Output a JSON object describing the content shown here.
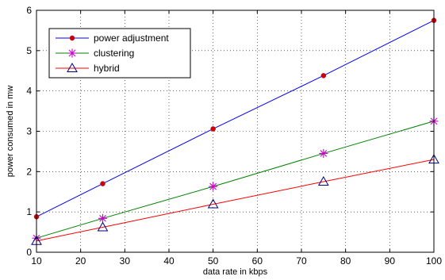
{
  "chart_data": {
    "type": "line",
    "title": "",
    "xlabel": "data rate in kbps",
    "ylabel": "power consumed in mw",
    "xlim": [
      10,
      100
    ],
    "ylim": [
      0,
      6
    ],
    "xticks": [
      10,
      20,
      30,
      40,
      50,
      60,
      70,
      80,
      90,
      100
    ],
    "yticks": [
      0,
      1,
      2,
      3,
      4,
      5,
      6
    ],
    "grid": true,
    "legend_position": "top-left",
    "series": [
      {
        "name": "power adjustment",
        "color": "#0000ff",
        "marker_color": "#cc0000",
        "marker": "dot",
        "x": [
          10,
          25,
          50,
          75,
          100
        ],
        "y": [
          0.88,
          1.7,
          3.06,
          4.38,
          5.75
        ]
      },
      {
        "name": "clustering",
        "color": "#008000",
        "marker_color": "#cc00cc",
        "marker": "asterisk",
        "x": [
          10,
          25,
          50,
          75,
          100
        ],
        "y": [
          0.35,
          0.84,
          1.63,
          2.45,
          3.25
        ]
      },
      {
        "name": "hybrid",
        "color": "#ff0000",
        "marker_color": "#000080",
        "marker": "triangle",
        "x": [
          10,
          25,
          50,
          75,
          100
        ],
        "y": [
          0.28,
          0.62,
          1.19,
          1.75,
          2.3
        ]
      }
    ]
  }
}
